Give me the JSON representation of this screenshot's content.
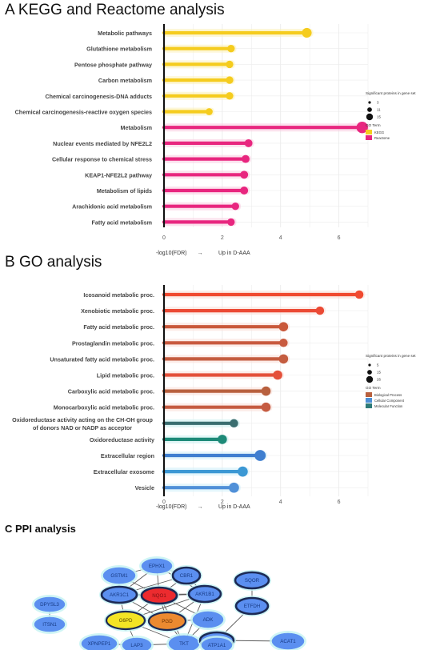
{
  "panels": {
    "a_title": "A KEGG and Reactome analysis",
    "b_title": "B  GO analysis",
    "c_title": "C PPI analysis"
  },
  "chart_data": [
    {
      "type": "lollipop",
      "title": "A KEGG and Reactome analysis",
      "xlabel_left": "-log10(FDR)",
      "xlabel_arrow": "→",
      "xlabel_right": "Up in  D-AAA",
      "xlim": [
        0,
        7
      ],
      "xticks": [
        "0",
        "2",
        "4",
        "6"
      ],
      "categories": [
        "Metabolic pathways",
        "Glutathione metabolism",
        "Pentose phosphate pathway",
        "Carbon metabolism",
        "Chemical carcinogenesis-DNA adducts",
        "Chemical carcinogenesis-reactive oxygen species",
        "Metabolism",
        "Nuclear events mediated by NFE2L2",
        "Cellular response to chemical stress",
        "KEAP1-NFE2L2 pathway",
        "Metabolism of lipids",
        "Arachidonic acid metabolism",
        "Fatty acid metabolism"
      ],
      "values": [
        4.9,
        2.3,
        2.25,
        2.25,
        2.25,
        1.55,
        6.8,
        2.9,
        2.8,
        2.75,
        2.75,
        2.45,
        2.3
      ],
      "sizes": [
        11,
        6,
        6,
        6,
        6,
        5,
        15,
        7,
        7,
        7,
        7,
        6,
        6
      ],
      "terms": [
        "KEGG",
        "KEGG",
        "KEGG",
        "KEGG",
        "KEGG",
        "KEGG",
        "Reactome",
        "Reactome",
        "Reactome",
        "Reactome",
        "Reactome",
        "Reactome",
        "Reactome"
      ],
      "size_legend_title": "Significant proteins in gene set",
      "size_legend": [
        {
          "label": "3",
          "size": 3
        },
        {
          "label": "11",
          "size": 11
        },
        {
          "label": "15",
          "size": 15
        }
      ],
      "color_legend_title": "GO Term",
      "color_legend": [
        {
          "label": "KEGG",
          "color": "#f5cc1e"
        },
        {
          "label": "Reactome",
          "color": "#e8267f"
        }
      ],
      "grid": true
    },
    {
      "type": "lollipop",
      "title": "B  GO analysis",
      "xlabel_left": "-log10(FDR)",
      "xlabel_arrow": "→",
      "xlabel_right": "Up in  D-AAA",
      "xlim": [
        0,
        7
      ],
      "xticks": [
        "0",
        "2",
        "4",
        "6"
      ],
      "categories": [
        "Icosanoid metabolic proc.",
        "Xenobiotic metabolic proc.",
        "Fatty acid metabolic proc.",
        "Prostaglandin metabolic proc.",
        "Unsaturated fatty acid metabolic proc.",
        "Lipid metabolic proc.",
        "Carboxylic acid metabolic proc.",
        "Monocarboxylic acid metabolic proc.",
        "Oxidoreductase activity acting on the CH-OH group|of donors NAD or NADP as acceptor",
        "Oxidoreductase activity",
        "Extracellular region",
        "Extracellular exosome",
        "Vesicle"
      ],
      "values": [
        6.7,
        5.35,
        4.1,
        4.1,
        4.1,
        3.9,
        3.5,
        3.5,
        2.4,
        2.0,
        3.3,
        2.7,
        2.4
      ],
      "sizes": [
        8,
        8,
        10,
        8,
        10,
        10,
        10,
        10,
        8,
        10,
        14,
        12,
        12
      ],
      "terms": [
        "bp",
        "bp",
        "bp",
        "bp",
        "bp",
        "bp",
        "bp",
        "bp",
        "mf",
        "mf",
        "cc",
        "cc",
        "cc"
      ],
      "colors": [
        "#f04a30",
        "#eb4a35",
        "#c9583a",
        "#c85a3f",
        "#c45d40",
        "#e4503a",
        "#b8603e",
        "#c55b41",
        "#3a6e70",
        "#1e8a78",
        "#3f7fd0",
        "#3c98d4",
        "#5090d8"
      ],
      "size_legend_title": "Significant proteins in gene set",
      "size_legend": [
        {
          "label": "5",
          "size": 5
        },
        {
          "label": "15",
          "size": 15
        },
        {
          "label": "26",
          "size": 26
        }
      ],
      "color_legend_title": "GO Term",
      "color_legend": [
        {
          "label": "Biological Process",
          "color": "#b8603e"
        },
        {
          "label": "Cellular Component",
          "color": "#4c8fd6"
        },
        {
          "label": "Molecular Function",
          "color": "#2d7a78"
        }
      ],
      "grid": true
    }
  ],
  "ppi": {
    "title": "C PPI analysis",
    "nodes": [
      {
        "id": "EPHX1",
        "style": "plain"
      },
      {
        "id": "GSTM1",
        "style": "plain"
      },
      {
        "id": "CBR1",
        "style": "dark"
      },
      {
        "id": "AKR1C1",
        "style": "dark"
      },
      {
        "id": "NQO1",
        "style": "red"
      },
      {
        "id": "AKR1B1",
        "style": "dark"
      },
      {
        "id": "SQOR",
        "style": "dark"
      },
      {
        "id": "G6PD",
        "style": "yellow"
      },
      {
        "id": "PGD",
        "style": "orange"
      },
      {
        "id": "ADK",
        "style": "plain"
      },
      {
        "id": "ETFDH",
        "style": "dark"
      },
      {
        "id": "DPYSL3",
        "style": "plain"
      },
      {
        "id": "ITSN1",
        "style": "plain"
      },
      {
        "id": "XPNPEP1",
        "style": "plain"
      },
      {
        "id": "LAP3",
        "style": "plain"
      },
      {
        "id": "TKT",
        "style": "plain"
      },
      {
        "id": "HADHB",
        "style": "dark"
      },
      {
        "id": "ACAT1",
        "style": "plain"
      },
      {
        "id": "ATP1A1",
        "style": "plain"
      }
    ],
    "edges": [
      [
        "EPHX1",
        "GSTM1"
      ],
      [
        "EPHX1",
        "AKR1C1"
      ],
      [
        "EPHX1",
        "NQO1"
      ],
      [
        "EPHX1",
        "CBR1"
      ],
      [
        "EPHX1",
        "AKR1B1"
      ],
      [
        "GSTM1",
        "AKR1C1"
      ],
      [
        "GSTM1",
        "NQO1"
      ],
      [
        "CBR1",
        "NQO1"
      ],
      [
        "CBR1",
        "AKR1B1"
      ],
      [
        "CBR1",
        "AKR1C1"
      ],
      [
        "AKR1C1",
        "NQO1"
      ],
      [
        "AKR1C1",
        "AKR1B1"
      ],
      [
        "AKR1C1",
        "G6PD"
      ],
      [
        "AKR1C1",
        "PGD"
      ],
      [
        "NQO1",
        "AKR1B1"
      ],
      [
        "NQO1",
        "G6PD"
      ],
      [
        "NQO1",
        "PGD"
      ],
      [
        "NQO1",
        "TKT"
      ],
      [
        "NQO1",
        "ADK"
      ],
      [
        "AKR1B1",
        "PGD"
      ],
      [
        "AKR1B1",
        "G6PD"
      ],
      [
        "AKR1B1",
        "TKT"
      ],
      [
        "G6PD",
        "PGD"
      ],
      [
        "G6PD",
        "TKT"
      ],
      [
        "G6PD",
        "LAP3"
      ],
      [
        "PGD",
        "TKT"
      ],
      [
        "PGD",
        "ADK"
      ],
      [
        "ADK",
        "TKT"
      ],
      [
        "TKT",
        "LAP3"
      ],
      [
        "TKT",
        "HADHB"
      ],
      [
        "LAP3",
        "XPNPEP1"
      ],
      [
        "SQOR",
        "ETFDH"
      ],
      [
        "ETFDH",
        "HADHB"
      ],
      [
        "HADHB",
        "ACAT1"
      ],
      [
        "HADHB",
        "ATP1A1"
      ],
      [
        "DPYSL3",
        "ITSN1"
      ]
    ]
  }
}
